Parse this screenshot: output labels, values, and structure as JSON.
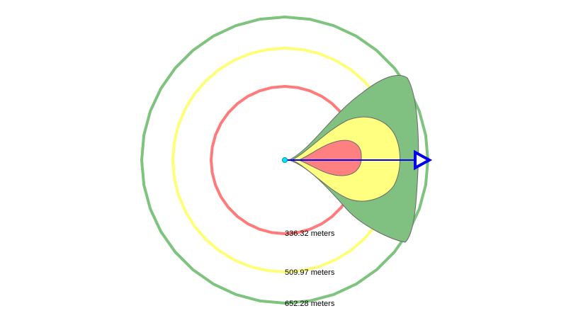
{
  "rings": [
    {
      "label": "336.32 meters",
      "color": "#ff7b7b"
    },
    {
      "label": "509.97 meters",
      "color": "#ffff77"
    },
    {
      "label": "652.28 meters",
      "color": "#7ec37e"
    }
  ],
  "zones": [
    {
      "name": "outer-green-zone",
      "color": "#80c080"
    },
    {
      "name": "middle-yellow-zone",
      "color": "#ffff80"
    },
    {
      "name": "inner-red-zone",
      "color": "#ff8080"
    }
  ],
  "origin_color": "#00e5ff",
  "arrow_color": "#0000ee"
}
